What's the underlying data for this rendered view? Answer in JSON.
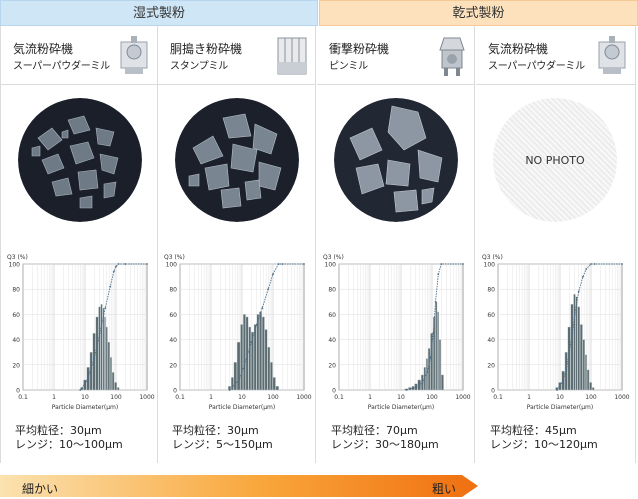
{
  "header": {
    "wet": "湿式製粉",
    "dry": "乾式製粉"
  },
  "columns": [
    {
      "machine_name": "気流粉砕機",
      "machine_type": "スーパーパウダーミル",
      "photo": true,
      "mean": "平均粒径：30μm",
      "range": "レンジ：10〜100μm"
    },
    {
      "machine_name": "胴搗き粉砕機",
      "machine_type": "スタンプミル",
      "photo": true,
      "mean": "平均粒径：30μm",
      "range": "レンジ：5〜150μm"
    },
    {
      "machine_name": "衝撃粉砕機",
      "machine_type": "ピンミル",
      "photo": true,
      "mean": "平均粒径：70μm",
      "range": "レンジ：30〜180μm"
    },
    {
      "machine_name": "気流粉砕機",
      "machine_type": "スーパーパウダーミル",
      "photo": false,
      "nophoto": "NO PHOTO",
      "mean": "平均粒径：45μm",
      "range": "レンジ：10〜120μm"
    }
  ],
  "scale": {
    "fine": "細かい",
    "coarse": "粗い"
  },
  "chart_data": [
    {
      "type": "bar",
      "ylabel": "Q3 (%)",
      "xlabel": "Particle Diameter(μm)",
      "xscale": "log",
      "xlim": [
        0.1,
        1000
      ],
      "ylim": [
        0,
        100
      ],
      "xticks": [
        "0.1",
        "1",
        "10",
        "100",
        "1000"
      ],
      "yticks": [
        "0",
        "20",
        "40",
        "60",
        "80",
        "100"
      ],
      "x": [
        8,
        10,
        13,
        16,
        20,
        25,
        30,
        35,
        40,
        45,
        50,
        60,
        70,
        80,
        100,
        120
      ],
      "values": [
        2,
        8,
        18,
        30,
        45,
        58,
        66,
        68,
        65,
        58,
        50,
        38,
        26,
        14,
        6,
        2
      ],
      "cumulative_x": [
        7,
        12,
        20,
        30,
        45,
        65,
        85,
        100,
        120,
        200,
        1000
      ],
      "cumulative": [
        0,
        8,
        25,
        45,
        65,
        82,
        94,
        98,
        100,
        100,
        100
      ]
    },
    {
      "type": "bar",
      "ylabel": "Q3 (%)",
      "xlabel": "Particle Diameter(μm)",
      "xscale": "log",
      "xlim": [
        0.1,
        1000
      ],
      "ylim": [
        0,
        100
      ],
      "xticks": [
        "0.1",
        "1",
        "10",
        "100",
        "1000"
      ],
      "yticks": [
        "0",
        "20",
        "40",
        "60",
        "80",
        "100"
      ],
      "x": [
        4,
        5,
        6,
        8,
        10,
        12,
        15,
        18,
        22,
        27,
        33,
        40,
        50,
        60,
        75,
        90,
        110,
        140
      ],
      "values": [
        3,
        10,
        22,
        38,
        52,
        60,
        58,
        50,
        46,
        52,
        60,
        62,
        58,
        48,
        34,
        22,
        10,
        3
      ],
      "cumulative_x": [
        4,
        8,
        12,
        20,
        30,
        45,
        70,
        100,
        150,
        200,
        1000
      ],
      "cumulative": [
        0,
        8,
        20,
        38,
        52,
        65,
        80,
        92,
        100,
        100,
        100
      ]
    },
    {
      "type": "bar",
      "ylabel": "Q3 (%)",
      "xlabel": "Particle Diameter(μm)",
      "xscale": "log",
      "xlim": [
        0.1,
        1000
      ],
      "ylim": [
        0,
        100
      ],
      "xticks": [
        "0.1",
        "1",
        "10",
        "100",
        "1000"
      ],
      "yticks": [
        "0",
        "20",
        "40",
        "60",
        "80",
        "100"
      ],
      "x": [
        15,
        20,
        25,
        30,
        40,
        50,
        60,
        70,
        80,
        100,
        120,
        140,
        160,
        180,
        220
      ],
      "values": [
        1,
        2,
        3,
        5,
        8,
        12,
        18,
        25,
        33,
        45,
        58,
        70,
        62,
        40,
        12
      ],
      "cumulative_x": [
        15,
        30,
        50,
        70,
        90,
        110,
        130,
        160,
        200,
        1000
      ],
      "cumulative": [
        0,
        2,
        6,
        14,
        26,
        45,
        70,
        92,
        100,
        100
      ]
    },
    {
      "type": "bar",
      "ylabel": "Q3 (%)",
      "xlabel": "Particle Diameter(μm)",
      "xscale": "log",
      "xlim": [
        0.1,
        1000
      ],
      "ylim": [
        0,
        100
      ],
      "xticks": [
        "0.1",
        "1",
        "10",
        "100",
        "1000"
      ],
      "yticks": [
        "0",
        "20",
        "40",
        "60",
        "80",
        "100"
      ],
      "x": [
        8,
        10,
        13,
        16,
        20,
        25,
        30,
        35,
        40,
        50,
        60,
        70,
        80,
        100,
        120
      ],
      "values": [
        2,
        6,
        15,
        30,
        50,
        68,
        76,
        74,
        66,
        52,
        40,
        28,
        16,
        6,
        2
      ],
      "cumulative_x": [
        8,
        12,
        16,
        20,
        25,
        30,
        40,
        55,
        70,
        100,
        130,
        1000
      ],
      "cumulative": [
        0,
        6,
        16,
        30,
        45,
        60,
        78,
        90,
        96,
        100,
        100,
        100
      ]
    }
  ]
}
